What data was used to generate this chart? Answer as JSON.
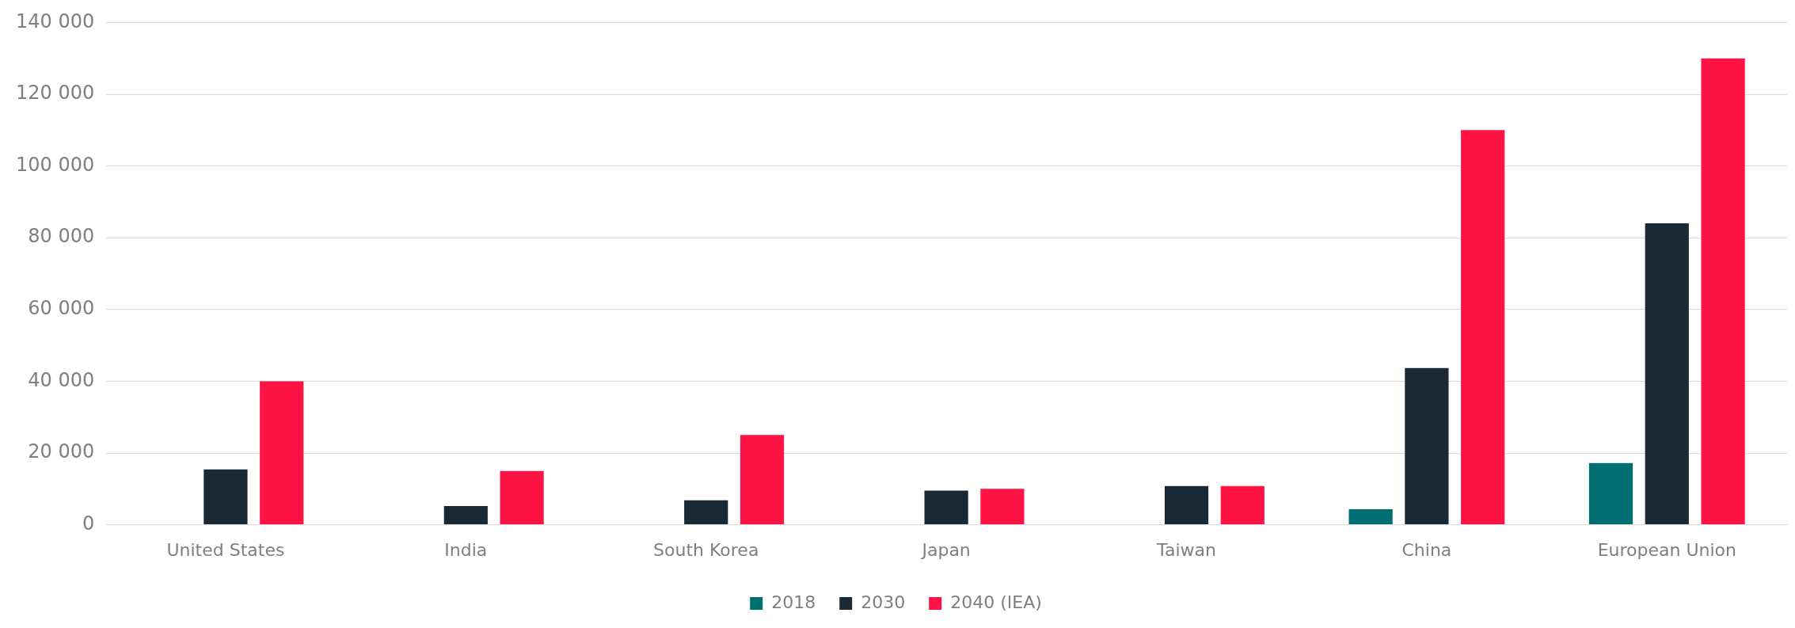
{
  "chart_data": {
    "type": "bar",
    "categories": [
      "United States",
      "India",
      "South Korea",
      "Japan",
      "Taiwan",
      "China",
      "European Union"
    ],
    "series": [
      {
        "name": "2018",
        "color": "#006f73",
        "values": [
          null,
          null,
          null,
          null,
          null,
          4300,
          17200
        ]
      },
      {
        "name": "2030",
        "color": "#1b2935",
        "values": [
          15400,
          5200,
          6800,
          9500,
          10800,
          43700,
          84000
        ]
      },
      {
        "name": "2040 (IEA)",
        "color": "#ff1244",
        "values": [
          40000,
          15000,
          25000,
          10000,
          10800,
          110000,
          130000
        ]
      }
    ],
    "ylim": [
      0,
      140000
    ],
    "yticks": [
      {
        "value": 0,
        "label": "0"
      },
      {
        "value": 20000,
        "label": "20 000"
      },
      {
        "value": 40000,
        "label": "40 000"
      },
      {
        "value": 60000,
        "label": "60 000"
      },
      {
        "value": 80000,
        "label": "80 000"
      },
      {
        "value": 100000,
        "label": "100 000"
      },
      {
        "value": 120000,
        "label": "120 000"
      },
      {
        "value": 140000,
        "label": "140 000"
      }
    ],
    "grid": "y",
    "legend": "bottom"
  }
}
